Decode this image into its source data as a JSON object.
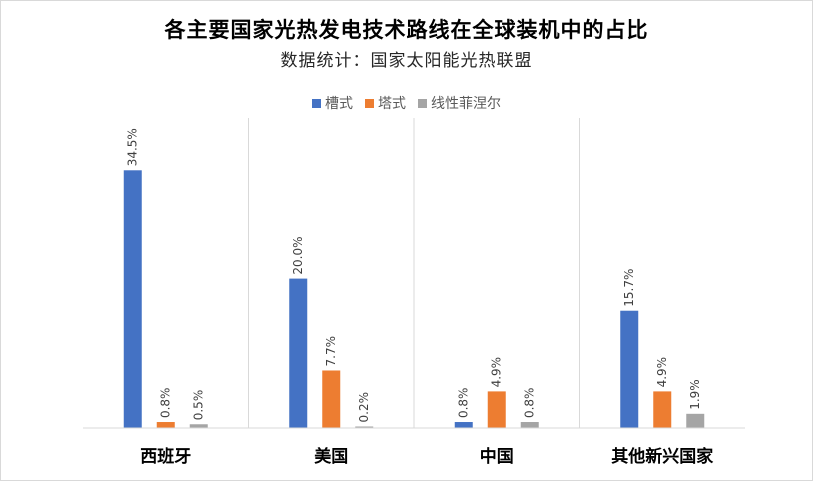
{
  "chart_data": {
    "type": "bar",
    "title": "各主要国家光热发电技术路线在全球装机中的占比",
    "subtitle": "数据统计：国家太阳能光热联盟",
    "categories": [
      "西班牙",
      "美国",
      "中国",
      "其他新兴国家"
    ],
    "series": [
      {
        "name": "槽式",
        "color": "#4472C4",
        "values": [
          34.5,
          20.0,
          0.8,
          15.7
        ],
        "labels": [
          "34.5%",
          "20.0%",
          "0.8%",
          "15.7%"
        ]
      },
      {
        "name": "塔式",
        "color": "#ED7D31",
        "values": [
          0.8,
          7.7,
          4.9,
          4.9
        ],
        "labels": [
          "0.8%",
          "7.7%",
          "4.9%",
          "4.9%"
        ]
      },
      {
        "name": "线性菲涅尔",
        "color": "#A5A5A5",
        "values": [
          0.5,
          0.2,
          0.8,
          1.9
        ],
        "labels": [
          "0.5%",
          "0.2%",
          "0.8%",
          "1.9%"
        ]
      }
    ],
    "ylim": [
      0,
      41.5
    ],
    "legend_position": "top",
    "grid": false,
    "category_separators": true
  }
}
